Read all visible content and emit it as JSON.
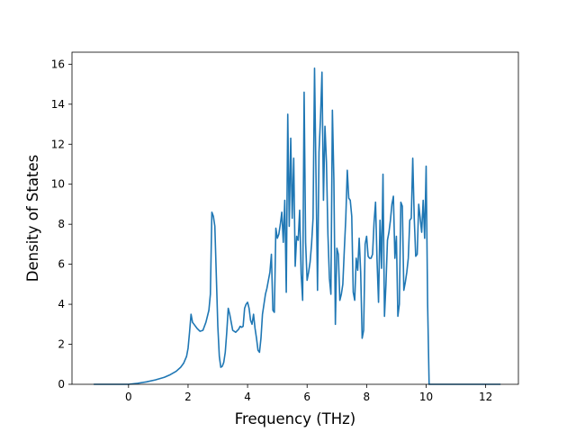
{
  "chart_data": {
    "type": "line",
    "title": "",
    "xlabel": "Frequency (THz)",
    "ylabel": "Density of States",
    "xlim": [
      -1.9,
      13.1
    ],
    "ylim": [
      0,
      16.6
    ],
    "xticks": [
      0,
      2,
      4,
      6,
      8,
      10,
      12
    ],
    "yticks": [
      0,
      2,
      4,
      6,
      8,
      10,
      12,
      14,
      16
    ],
    "grid": false,
    "line_color": "#1f77b4",
    "series": [
      {
        "x": [
          -1.17,
          -1.0,
          -0.5,
          0.0,
          0.3,
          0.6,
          0.9,
          1.2,
          1.4,
          1.6,
          1.75,
          1.85,
          1.95,
          2.0,
          2.05,
          2.1,
          2.15,
          2.2,
          2.3,
          2.4,
          2.5,
          2.6,
          2.7,
          2.75,
          2.8,
          2.85,
          2.9,
          3.0,
          3.05,
          3.1,
          3.15,
          3.2,
          3.25,
          3.3,
          3.35,
          3.4,
          3.5,
          3.6,
          3.7,
          3.75,
          3.8,
          3.85,
          3.9,
          3.95,
          4.0,
          4.05,
          4.1,
          4.15,
          4.2,
          4.25,
          4.3,
          4.35,
          4.4,
          4.45,
          4.5,
          4.55,
          4.6,
          4.65,
          4.7,
          4.75,
          4.8,
          4.85,
          4.9,
          4.95,
          5.0,
          5.05,
          5.1,
          5.15,
          5.2,
          5.25,
          5.3,
          5.35,
          5.4,
          5.45,
          5.5,
          5.55,
          5.6,
          5.65,
          5.7,
          5.75,
          5.8,
          5.85,
          5.9,
          5.95,
          6.0,
          6.05,
          6.1,
          6.15,
          6.2,
          6.25,
          6.3,
          6.35,
          6.4,
          6.45,
          6.5,
          6.55,
          6.6,
          6.65,
          6.7,
          6.75,
          6.8,
          6.85,
          6.9,
          6.95,
          7.0,
          7.05,
          7.1,
          7.15,
          7.2,
          7.25,
          7.3,
          7.35,
          7.4,
          7.45,
          7.5,
          7.55,
          7.6,
          7.65,
          7.7,
          7.75,
          7.8,
          7.85,
          7.9,
          7.95,
          8.0,
          8.05,
          8.1,
          8.15,
          8.2,
          8.25,
          8.3,
          8.35,
          8.4,
          8.45,
          8.5,
          8.55,
          8.6,
          8.65,
          8.7,
          8.75,
          8.8,
          8.85,
          8.9,
          8.95,
          9.0,
          9.05,
          9.1,
          9.15,
          9.2,
          9.25,
          9.3,
          9.35,
          9.4,
          9.45,
          9.5,
          9.55,
          9.6,
          9.65,
          9.7,
          9.75,
          9.8,
          9.85,
          9.9,
          9.95,
          10.0,
          10.05,
          10.1,
          10.15,
          10.2,
          10.25,
          10.3,
          10.35,
          10.4,
          10.45,
          10.5,
          10.55,
          10.6,
          10.65,
          10.7,
          10.75,
          10.8,
          10.85,
          10.9,
          10.95,
          11.0,
          11.05,
          11.1,
          11.15,
          11.2,
          11.25,
          11.3,
          11.35,
          11.4,
          11.45,
          11.5,
          12.0,
          12.5
        ],
        "y": [
          0,
          0,
          0,
          0,
          0.05,
          0.12,
          0.22,
          0.35,
          0.48,
          0.65,
          0.85,
          1.05,
          1.4,
          1.8,
          2.6,
          3.5,
          3.1,
          3.0,
          2.8,
          2.65,
          2.7,
          3.1,
          3.7,
          4.5,
          8.6,
          8.4,
          7.9,
          2.9,
          1.4,
          0.85,
          0.9,
          1.1,
          1.6,
          2.6,
          3.8,
          3.5,
          2.7,
          2.6,
          2.75,
          2.9,
          2.85,
          2.9,
          3.8,
          4.0,
          4.1,
          3.8,
          3.2,
          3.0,
          3.5,
          2.8,
          2.3,
          1.7,
          1.6,
          2.3,
          3.5,
          4.0,
          4.5,
          4.8,
          5.2,
          5.6,
          6.5,
          3.7,
          3.6,
          7.8,
          7.3,
          7.5,
          8.0,
          8.6,
          7.1,
          9.2,
          4.6,
          13.5,
          7.9,
          12.3,
          8.3,
          11.3,
          5.9,
          7.4,
          7.2,
          8.7,
          5.5,
          4.2,
          14.6,
          7.1,
          5.2,
          5.6,
          6.1,
          7.0,
          8.3,
          15.8,
          10.3,
          4.7,
          11.6,
          13.3,
          15.6,
          9.2,
          12.9,
          11.1,
          7.5,
          5.3,
          4.5,
          13.7,
          10.2,
          3.0,
          6.8,
          6.5,
          4.2,
          4.5,
          5.0,
          6.7,
          8.3,
          10.7,
          9.3,
          9.2,
          8.4,
          4.6,
          4.2,
          6.3,
          5.7,
          7.3,
          5.6,
          2.3,
          2.7,
          7.0,
          7.4,
          6.4,
          6.3,
          6.3,
          6.5,
          8.1,
          9.1,
          6.2,
          4.1,
          8.2,
          5.8,
          10.5,
          3.4,
          5.0,
          7.2,
          7.6,
          8.2,
          9.0,
          9.4,
          6.3,
          7.4,
          3.4,
          4.0,
          9.1,
          8.9,
          4.7,
          5.1,
          5.6,
          6.3,
          8.2,
          8.3,
          11.3,
          8.3,
          6.4,
          6.5,
          9.0,
          8.3,
          7.6,
          9.2,
          7.3,
          10.9,
          4.0,
          0,
          0,
          0,
          0,
          0,
          0,
          0,
          0,
          0,
          0,
          0,
          0,
          0,
          0,
          0,
          0,
          0,
          0,
          0,
          0,
          0,
          0,
          0,
          0,
          0,
          0,
          0,
          0,
          0,
          0,
          0
        ]
      }
    ]
  }
}
